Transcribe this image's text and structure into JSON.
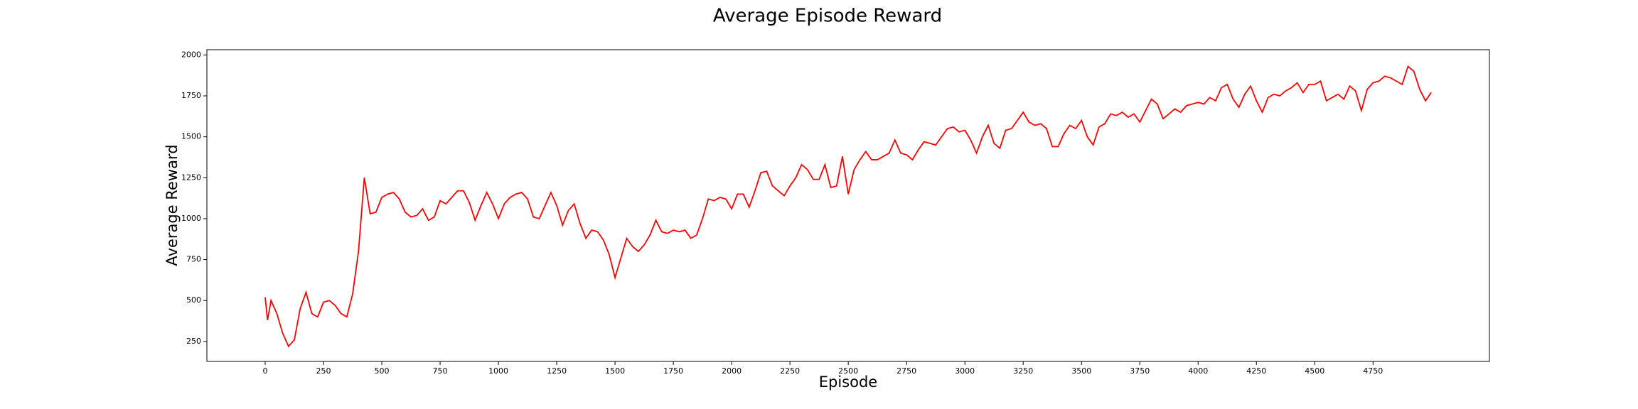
{
  "chart_data": {
    "type": "line",
    "title": "Average Episode Reward",
    "x_label": "Episode",
    "y_label": "Average Reward",
    "x": [
      0,
      10,
      25,
      50,
      75,
      100,
      125,
      150,
      175,
      200,
      225,
      250,
      275,
      300,
      325,
      350,
      375,
      400,
      425,
      450,
      475,
      500,
      525,
      550,
      575,
      600,
      625,
      650,
      675,
      700,
      725,
      750,
      775,
      800,
      825,
      850,
      875,
      900,
      925,
      950,
      975,
      1000,
      1025,
      1050,
      1075,
      1100,
      1125,
      1150,
      1175,
      1200,
      1225,
      1250,
      1275,
      1300,
      1325,
      1350,
      1375,
      1400,
      1425,
      1450,
      1475,
      1500,
      1525,
      1550,
      1575,
      1600,
      1625,
      1650,
      1675,
      1700,
      1725,
      1750,
      1775,
      1800,
      1825,
      1850,
      1875,
      1900,
      1925,
      1950,
      1975,
      2000,
      2025,
      2050,
      2075,
      2100,
      2125,
      2150,
      2175,
      2200,
      2225,
      2250,
      2275,
      2300,
      2325,
      2350,
      2375,
      2400,
      2425,
      2450,
      2475,
      2500,
      2525,
      2550,
      2575,
      2600,
      2625,
      2650,
      2675,
      2700,
      2725,
      2750,
      2775,
      2800,
      2825,
      2850,
      2875,
      2900,
      2925,
      2950,
      2975,
      3000,
      3025,
      3050,
      3075,
      3100,
      3125,
      3150,
      3175,
      3200,
      3225,
      3250,
      3275,
      3300,
      3325,
      3350,
      3375,
      3400,
      3425,
      3450,
      3475,
      3500,
      3525,
      3550,
      3575,
      3600,
      3625,
      3650,
      3675,
      3700,
      3725,
      3750,
      3775,
      3800,
      3825,
      3850,
      3875,
      3900,
      3925,
      3950,
      3975,
      4000,
      4025,
      4050,
      4075,
      4100,
      4125,
      4150,
      4175,
      4200,
      4225,
      4250,
      4275,
      4300,
      4325,
      4350,
      4375,
      4400,
      4425,
      4450,
      4475,
      4500,
      4525,
      4550,
      4575,
      4600,
      4625,
      4650,
      4675,
      4700,
      4725,
      4750,
      4775,
      4800,
      4825,
      4850,
      4875,
      4900,
      4925,
      4950,
      4975,
      4999
    ],
    "values": [
      520,
      380,
      500,
      420,
      300,
      220,
      260,
      450,
      550,
      420,
      400,
      490,
      500,
      470,
      420,
      400,
      540,
      800,
      1250,
      1030,
      1040,
      1130,
      1150,
      1160,
      1120,
      1040,
      1010,
      1020,
      1060,
      990,
      1010,
      1110,
      1090,
      1130,
      1170,
      1170,
      1100,
      990,
      1080,
      1160,
      1090,
      1000,
      1090,
      1130,
      1150,
      1160,
      1120,
      1010,
      1000,
      1080,
      1160,
      1080,
      960,
      1050,
      1090,
      970,
      880,
      930,
      920,
      870,
      780,
      640,
      760,
      880,
      830,
      800,
      840,
      900,
      990,
      920,
      910,
      930,
      920,
      930,
      880,
      900,
      1000,
      1120,
      1110,
      1130,
      1120,
      1060,
      1150,
      1150,
      1070,
      1170,
      1280,
      1290,
      1200,
      1170,
      1140,
      1200,
      1250,
      1330,
      1300,
      1240,
      1240,
      1330,
      1190,
      1200,
      1380,
      1150,
      1300,
      1360,
      1410,
      1360,
      1360,
      1380,
      1400,
      1480,
      1400,
      1390,
      1360,
      1420,
      1470,
      1460,
      1450,
      1500,
      1550,
      1560,
      1530,
      1540,
      1480,
      1400,
      1500,
      1570,
      1460,
      1430,
      1540,
      1550,
      1600,
      1650,
      1590,
      1570,
      1580,
      1550,
      1440,
      1440,
      1520,
      1570,
      1550,
      1600,
      1500,
      1450,
      1560,
      1580,
      1640,
      1630,
      1650,
      1620,
      1640,
      1590,
      1660,
      1730,
      1700,
      1610,
      1640,
      1670,
      1650,
      1690,
      1700,
      1710,
      1700,
      1740,
      1720,
      1800,
      1820,
      1730,
      1680,
      1760,
      1810,
      1720,
      1650,
      1740,
      1760,
      1750,
      1780,
      1800,
      1830,
      1770,
      1820,
      1820,
      1840,
      1720,
      1740,
      1760,
      1730,
      1810,
      1780,
      1660,
      1790,
      1830,
      1840,
      1870,
      1860,
      1840,
      1820,
      1930,
      1900,
      1790,
      1720,
      1770
    ],
    "color": "#ff0000",
    "xlim": [
      -250,
      5249
    ],
    "ylim": [
      128,
      2032
    ],
    "xticks": [
      0,
      250,
      500,
      750,
      1000,
      1250,
      1500,
      1750,
      2000,
      2250,
      2500,
      2750,
      3000,
      3250,
      3500,
      3750,
      4000,
      4250,
      4500,
      4750
    ],
    "yticks": [
      250,
      500,
      750,
      1000,
      1250,
      1500,
      1750,
      2000
    ]
  }
}
